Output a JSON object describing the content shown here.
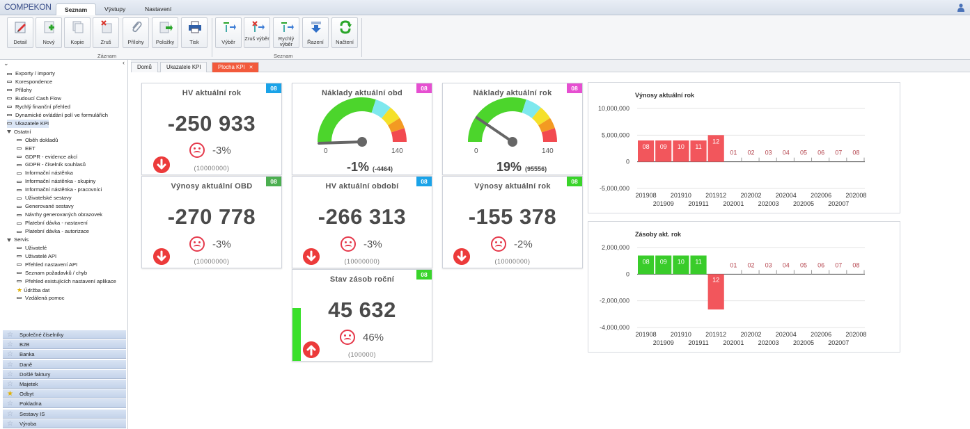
{
  "app": {
    "logo": "COMPEKON",
    "top_tabs": [
      "Seznam",
      "Výstupy",
      "Nastavení"
    ]
  },
  "ribbon": {
    "group1": {
      "caption": "Záznam",
      "buttons": [
        "Detail",
        "Nový",
        "Kopie",
        "Zruš",
        "Přílohy",
        "Položky",
        "Tisk"
      ]
    },
    "group2": {
      "caption": "Seznam",
      "buttons": [
        "Výběr",
        "Zruš výběr",
        "Rychlý výběr",
        "Řazení",
        "Načtení"
      ]
    }
  },
  "sidebar": {
    "items": [
      {
        "label": "Exporty / importy",
        "level": 0
      },
      {
        "label": "Korespondence",
        "level": 0
      },
      {
        "label": "Přílohy",
        "level": 0
      },
      {
        "label": "Budoucí Cash Flow",
        "level": 0
      },
      {
        "label": "Rychlý finanční přehled",
        "level": 0
      },
      {
        "label": "Dynamické ovládání polí ve formulářích",
        "level": 0
      },
      {
        "label": "Ukazatele KPI",
        "level": 0,
        "selected": true
      },
      {
        "label": "Ostatní",
        "level": 0,
        "folder": true
      },
      {
        "label": "Oběh dokladů",
        "level": 1
      },
      {
        "label": "EET",
        "level": 1
      },
      {
        "label": "GDPR - evidence akcí",
        "level": 1
      },
      {
        "label": "GDPR - číselník souhlasů",
        "level": 1
      },
      {
        "label": "Informační nástěnka",
        "level": 1
      },
      {
        "label": "Informační nástěnka - skupiny",
        "level": 1
      },
      {
        "label": "Informační nástěnka - pracovníci",
        "level": 1
      },
      {
        "label": "Uživatelské sestavy",
        "level": 1
      },
      {
        "label": "Generované sestavy",
        "level": 1
      },
      {
        "label": "Návrhy generovaných obrazovek",
        "level": 1
      },
      {
        "label": "Platební dávka - nastavení",
        "level": 1
      },
      {
        "label": "Platební dávka - autorizace",
        "level": 1
      },
      {
        "label": "Servis",
        "level": 0,
        "folder": true
      },
      {
        "label": "Uživatelé",
        "level": 1
      },
      {
        "label": "Uživatelé API",
        "level": 1
      },
      {
        "label": "Přehled nastavení API",
        "level": 1
      },
      {
        "label": "Seznam požadavků / chyb",
        "level": 1
      },
      {
        "label": "Přehled existujících nastavení aplikace",
        "level": 1
      },
      {
        "label": "Údržba dat",
        "level": 1,
        "star": true
      },
      {
        "label": "Vzdálená pomoc",
        "level": 1
      }
    ],
    "modules": [
      "Společné číselníky",
      "B2B",
      "Banka",
      "Daně",
      "Došlé faktury",
      "Majetek",
      "Odbyt",
      "Pokladna",
      "Sestavy IS",
      "Výroba"
    ]
  },
  "doc_tabs": [
    "Domů",
    "Ukazatele KPI",
    "Plocha KPI"
  ],
  "tiles": [
    {
      "title": "HV aktuální rok",
      "badge": "08",
      "badge_color": "#1aa3e8",
      "value": "-250 933",
      "pct": "-3%",
      "sub": "(10000000)",
      "arrow": "down"
    },
    {
      "title": "Výnosy aktuální OBD",
      "badge": "08",
      "badge_color": "#4caf50",
      "value": "-270 778",
      "pct": "-3%",
      "sub": "(10000000)",
      "arrow": "down"
    },
    {
      "title": "HV aktuální období",
      "badge": "08",
      "badge_color": "#1aa3e8",
      "value": "-266 313",
      "pct": "-3%",
      "sub": "(10000000)",
      "arrow": "down"
    },
    {
      "title": "Výnosy aktuální rok",
      "badge": "08",
      "badge_color": "#39d42a",
      "value": "-155 378",
      "pct": "-2%",
      "sub": "(10000000)",
      "arrow": "down"
    },
    {
      "title": "Stav zásob roční",
      "badge": "08",
      "badge_color": "#39d42a",
      "value": "45 632",
      "pct": "46%",
      "sub": "(100000)",
      "arrow": "up",
      "bar_level": 0.46
    }
  ],
  "gauges": [
    {
      "title": "Náklady aktuální obd",
      "badge": "08",
      "badge_color": "#e64fd1",
      "min": "0",
      "max": "140",
      "value_pct": "-1%",
      "value_sub": "(-4464)",
      "needle_level": -0.01
    },
    {
      "title": "Náklady aktuální rok",
      "badge": "08",
      "badge_color": "#e64fd1",
      "min": "0",
      "max": "140",
      "value_pct": "19%",
      "value_sub": "(95556)",
      "needle_level": 0.19
    }
  ],
  "chart_data": [
    {
      "type": "bar",
      "title": "Výnosy aktuální rok",
      "categories": [
        "201908",
        "201909",
        "201910",
        "201911",
        "201912",
        "202001",
        "202002",
        "202003",
        "202004",
        "202005",
        "202006",
        "202007",
        "202008"
      ],
      "bar_labels": [
        "08",
        "09",
        "10",
        "11",
        "12",
        "01",
        "02",
        "03",
        "04",
        "05",
        "06",
        "07",
        "08"
      ],
      "values": [
        4000000,
        4000000,
        4000000,
        4000000,
        5000000,
        0,
        0,
        0,
        0,
        0,
        0,
        0,
        0
      ],
      "yticks": [
        "10,000,000",
        "5,000,000",
        "0",
        "-5,000,000"
      ],
      "ylim": [
        -5000000,
        10000000
      ],
      "bar_color": "#f2565c",
      "grid": true
    },
    {
      "type": "bar",
      "title": "Zásoby akt. rok",
      "categories": [
        "201908",
        "201909",
        "201910",
        "201911",
        "201912",
        "202001",
        "202002",
        "202003",
        "202004",
        "202005",
        "202006",
        "202007",
        "202008"
      ],
      "bar_labels": [
        "08",
        "09",
        "10",
        "11",
        "12",
        "01",
        "02",
        "03",
        "04",
        "05",
        "06",
        "07",
        "08"
      ],
      "values": [
        1400000,
        1400000,
        1400000,
        1400000,
        -2650000,
        0,
        0,
        0,
        0,
        0,
        0,
        0,
        0
      ],
      "bar_colors": [
        "#39cc2a",
        "#39cc2a",
        "#39cc2a",
        "#39cc2a",
        "#f2565c",
        "#f2565c",
        "#f2565c",
        "#f2565c",
        "#f2565c",
        "#f2565c",
        "#f2565c",
        "#f2565c",
        "#f2565c"
      ],
      "yticks": [
        "2,000,000",
        "0",
        "-2,000,000",
        "-4,000,000"
      ],
      "ylim": [
        -4000000,
        2000000
      ],
      "grid": true
    }
  ]
}
